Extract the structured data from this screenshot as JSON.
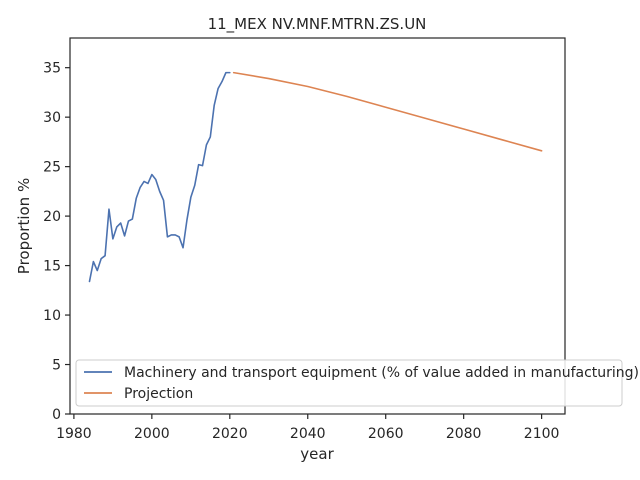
{
  "chart_data": {
    "type": "line",
    "title": "11_MEX NV.MNF.MTRN.ZS.UN",
    "xlabel": "year",
    "ylabel": "Proportion %",
    "xlim": [
      1979,
      2106
    ],
    "ylim": [
      0,
      38
    ],
    "xticks": [
      1980,
      2000,
      2020,
      2040,
      2060,
      2080,
      2100
    ],
    "yticks": [
      0,
      5,
      10,
      15,
      20,
      25,
      30,
      35
    ],
    "grid": false,
    "legend_position": "bottom-left",
    "series": [
      {
        "name": "Machinery and transport equipment (% of value added in manufacturing)",
        "color": "#4c72b0",
        "x": [
          1984,
          1985,
          1986,
          1987,
          1988,
          1989,
          1990,
          1991,
          1992,
          1993,
          1994,
          1995,
          1996,
          1997,
          1998,
          1999,
          2000,
          2001,
          2002,
          2003,
          2004,
          2005,
          2006,
          2007,
          2008,
          2009,
          2010,
          2011,
          2012,
          2013,
          2014,
          2015,
          2016,
          2017,
          2018,
          2019,
          2020
        ],
        "y": [
          13.4,
          15.4,
          14.5,
          15.7,
          16.0,
          20.7,
          17.7,
          18.9,
          19.3,
          18.0,
          19.5,
          19.7,
          21.8,
          22.9,
          23.5,
          23.3,
          24.2,
          23.7,
          22.5,
          21.6,
          17.9,
          18.1,
          18.1,
          17.9,
          16.8,
          19.6,
          21.9,
          23.1,
          25.2,
          25.1,
          27.2,
          28.0,
          31.2,
          32.9,
          33.6,
          34.5,
          34.5
        ]
      },
      {
        "name": "Projection",
        "color": "#dd8452",
        "x": [
          2021,
          2030,
          2040,
          2050,
          2060,
          2070,
          2080,
          2090,
          2100
        ],
        "y": [
          34.5,
          33.9,
          33.1,
          32.1,
          31.0,
          29.9,
          28.8,
          27.7,
          26.6
        ]
      }
    ]
  }
}
